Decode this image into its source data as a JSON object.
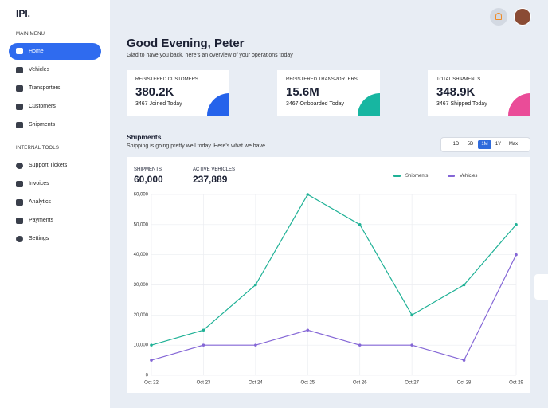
{
  "logo": "IPI.",
  "sidebar": {
    "main_title": "MAIN MENU",
    "main_items": [
      "Home",
      "Vehicles",
      "Transporters",
      "Customers",
      "Shipments"
    ],
    "tools_title": "INTERNAL TOOLS",
    "tools_items": [
      "Support Tickets",
      "Invoices",
      "Analytics",
      "Payments",
      "Settings"
    ]
  },
  "header": {
    "title": "Good Evening, Peter",
    "subtitle": "Glad to have you back, here's an overview of your operations today"
  },
  "cards": [
    {
      "label": "REGISTERED CUSTOMERS",
      "value": "380.2K",
      "note": "3467 Joined Today"
    },
    {
      "label": "REGISTERED TRANSPORTERS",
      "value": "15.6M",
      "note": "3467 Onboarded Today"
    },
    {
      "label": "TOTAL SHIPMENTS",
      "value": "348.9K",
      "note": "3467 Shipped Today"
    }
  ],
  "section": {
    "title": "Shipments",
    "subtitle": "Shipping is going pretty well today. Here's what we have",
    "ranges": [
      "1D",
      "5D",
      "1M",
      "1Y",
      "Max"
    ]
  },
  "stats": [
    {
      "label": "SHIPMENTS",
      "value": "60,000"
    },
    {
      "label": "ACTIVE VEHICLES",
      "value": "237,889"
    }
  ],
  "chart_data": {
    "type": "line",
    "categories": [
      "Oct 22",
      "Oct 23",
      "Oct 24",
      "Oct 25",
      "Oct 26",
      "Oct 27",
      "Oct 28",
      "Oct 29"
    ],
    "series": [
      {
        "name": "Shipments",
        "color": "#1fb196",
        "values": [
          10000,
          15000,
          30000,
          60000,
          50000,
          20000,
          30000,
          50000
        ]
      },
      {
        "name": "Vehicles",
        "color": "#8466d6",
        "values": [
          5000,
          10000,
          10000,
          15000,
          10000,
          10000,
          5000,
          40000
        ]
      }
    ],
    "ylim": [
      0,
      60000
    ],
    "yticks": [
      0,
      {
        "value": 10000,
        "label": "10,000"
      },
      {
        "value": 20000,
        "label": "20,000"
      },
      {
        "value": 30000,
        "label": "30,000"
      },
      {
        "value": 40000,
        "label": "40,000"
      },
      {
        "value": 50000,
        "label": "50,000"
      },
      {
        "value": 60000,
        "label": "60,000"
      }
    ],
    "grid": true
  }
}
